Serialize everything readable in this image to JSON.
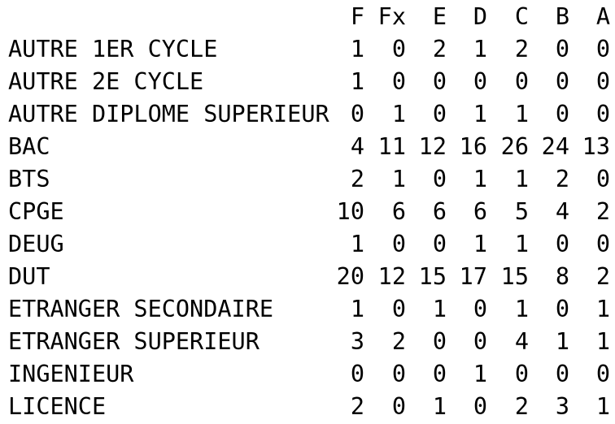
{
  "table": {
    "columns": [
      "F",
      "Fx",
      "E",
      "D",
      "C",
      "B",
      "A"
    ],
    "rows": [
      {
        "name": "AUTRE 1ER CYCLE",
        "values": [
          "1",
          "0",
          "2",
          "1",
          "2",
          "0",
          "0"
        ]
      },
      {
        "name": "AUTRE 2E CYCLE",
        "values": [
          "1",
          "0",
          "0",
          "0",
          "0",
          "0",
          "0"
        ]
      },
      {
        "name": "AUTRE DIPLOME SUPERIEUR",
        "values": [
          "0",
          "1",
          "0",
          "1",
          "1",
          "0",
          "0"
        ]
      },
      {
        "name": "BAC",
        "values": [
          "4",
          "11",
          "12",
          "16",
          "26",
          "24",
          "13"
        ]
      },
      {
        "name": "BTS",
        "values": [
          "2",
          "1",
          "0",
          "1",
          "1",
          "2",
          "0"
        ]
      },
      {
        "name": "CPGE",
        "values": [
          "10",
          "6",
          "6",
          "6",
          "5",
          "4",
          "2"
        ]
      },
      {
        "name": "DEUG",
        "values": [
          "1",
          "0",
          "0",
          "1",
          "1",
          "0",
          "0"
        ]
      },
      {
        "name": "DUT",
        "values": [
          "20",
          "12",
          "15",
          "17",
          "15",
          "8",
          "2"
        ]
      },
      {
        "name": "ETRANGER SECONDAIRE",
        "values": [
          "1",
          "0",
          "1",
          "0",
          "1",
          "0",
          "1"
        ]
      },
      {
        "name": "ETRANGER SUPERIEUR",
        "values": [
          "3",
          "2",
          "0",
          "0",
          "4",
          "1",
          "1"
        ]
      },
      {
        "name": "INGENIEUR",
        "values": [
          "0",
          "0",
          "0",
          "1",
          "0",
          "0",
          "0"
        ]
      },
      {
        "name": "LICENCE",
        "values": [
          "2",
          "0",
          "1",
          "0",
          "2",
          "3",
          "1"
        ]
      }
    ]
  }
}
